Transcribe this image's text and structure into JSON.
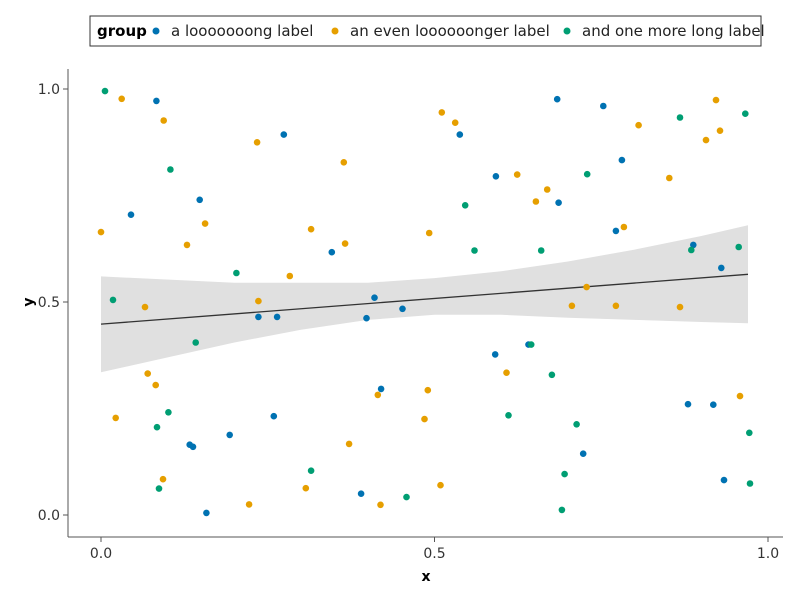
{
  "chart_data": {
    "type": "scatter",
    "legend": {
      "title": "group",
      "position": "top"
    },
    "xlabel": "x",
    "ylabel": "y",
    "xlim": [
      0.0,
      1.0
    ],
    "ylim": [
      0.0,
      1.0
    ],
    "x_ticks": [
      {
        "value": 0.0,
        "label": "0.0"
      },
      {
        "value": 0.5,
        "label": "0.5"
      },
      {
        "value": 1.0,
        "label": "1.0"
      }
    ],
    "y_ticks": [
      {
        "value": 0.0,
        "label": "0.0"
      },
      {
        "value": 0.5,
        "label": "0.5"
      },
      {
        "value": 1.0,
        "label": "1.0"
      }
    ],
    "grid": false,
    "series": [
      {
        "name": "a looooooong label",
        "color": "#0072b2",
        "points": [
          [
            0.045,
            0.705
          ],
          [
            0.083,
            0.972
          ],
          [
            0.133,
            0.165
          ],
          [
            0.138,
            0.16
          ],
          [
            0.148,
            0.74
          ],
          [
            0.158,
            0.005
          ],
          [
            0.193,
            0.188
          ],
          [
            0.236,
            0.465
          ],
          [
            0.259,
            0.232
          ],
          [
            0.264,
            0.465
          ],
          [
            0.274,
            0.893
          ],
          [
            0.346,
            0.617
          ],
          [
            0.39,
            0.05
          ],
          [
            0.398,
            0.462
          ],
          [
            0.41,
            0.51
          ],
          [
            0.42,
            0.296
          ],
          [
            0.452,
            0.484
          ],
          [
            0.538,
            0.893
          ],
          [
            0.591,
            0.377
          ],
          [
            0.592,
            0.795
          ],
          [
            0.641,
            0.4
          ],
          [
            0.684,
            0.976
          ],
          [
            0.686,
            0.733
          ],
          [
            0.723,
            0.144
          ],
          [
            0.753,
            0.96
          ],
          [
            0.772,
            0.667
          ],
          [
            0.781,
            0.833
          ],
          [
            0.88,
            0.26
          ],
          [
            0.888,
            0.634
          ],
          [
            0.918,
            0.259
          ],
          [
            0.93,
            0.58
          ],
          [
            0.934,
            0.082
          ]
        ]
      },
      {
        "name": "an even loooooonger label",
        "color": "#e69f00",
        "points": [
          [
            0.0,
            0.664
          ],
          [
            0.022,
            0.228
          ],
          [
            0.031,
            0.977
          ],
          [
            0.066,
            0.488
          ],
          [
            0.07,
            0.332
          ],
          [
            0.082,
            0.305
          ],
          [
            0.093,
            0.084
          ],
          [
            0.094,
            0.926
          ],
          [
            0.129,
            0.634
          ],
          [
            0.156,
            0.684
          ],
          [
            0.222,
            0.025
          ],
          [
            0.234,
            0.875
          ],
          [
            0.236,
            0.502
          ],
          [
            0.283,
            0.561
          ],
          [
            0.307,
            0.063
          ],
          [
            0.315,
            0.671
          ],
          [
            0.364,
            0.828
          ],
          [
            0.366,
            0.637
          ],
          [
            0.372,
            0.167
          ],
          [
            0.415,
            0.282
          ],
          [
            0.419,
            0.024
          ],
          [
            0.485,
            0.225
          ],
          [
            0.49,
            0.293
          ],
          [
            0.492,
            0.662
          ],
          [
            0.509,
            0.07
          ],
          [
            0.511,
            0.945
          ],
          [
            0.531,
            0.921
          ],
          [
            0.608,
            0.334
          ],
          [
            0.624,
            0.799
          ],
          [
            0.652,
            0.736
          ],
          [
            0.669,
            0.764
          ],
          [
            0.706,
            0.491
          ],
          [
            0.728,
            0.535
          ],
          [
            0.772,
            0.491
          ],
          [
            0.784,
            0.676
          ],
          [
            0.806,
            0.915
          ],
          [
            0.852,
            0.791
          ],
          [
            0.868,
            0.488
          ],
          [
            0.907,
            0.88
          ],
          [
            0.922,
            0.974
          ],
          [
            0.928,
            0.902
          ],
          [
            0.958,
            0.279
          ]
        ]
      },
      {
        "name": "and one more long label",
        "color": "#009e73",
        "points": [
          [
            0.006,
            0.995
          ],
          [
            0.018,
            0.505
          ],
          [
            0.084,
            0.206
          ],
          [
            0.087,
            0.062
          ],
          [
            0.101,
            0.241
          ],
          [
            0.104,
            0.811
          ],
          [
            0.142,
            0.405
          ],
          [
            0.203,
            0.568
          ],
          [
            0.315,
            0.104
          ],
          [
            0.458,
            0.042
          ],
          [
            0.546,
            0.727
          ],
          [
            0.56,
            0.621
          ],
          [
            0.611,
            0.234
          ],
          [
            0.645,
            0.4
          ],
          [
            0.66,
            0.621
          ],
          [
            0.676,
            0.329
          ],
          [
            0.691,
            0.012
          ],
          [
            0.695,
            0.096
          ],
          [
            0.713,
            0.213
          ],
          [
            0.729,
            0.8
          ],
          [
            0.868,
            0.933
          ],
          [
            0.885,
            0.622
          ],
          [
            0.956,
            0.629
          ],
          [
            0.966,
            0.942
          ],
          [
            0.972,
            0.193
          ],
          [
            0.973,
            0.074
          ]
        ]
      }
    ],
    "trend": {
      "type": "linear fit with confidence band",
      "x_range": [
        0.0,
        0.97
      ],
      "line_color": "#333333",
      "band_color": "#e0e0e0",
      "line": [
        [
          0.0,
          0.448
        ],
        [
          0.97,
          0.565
        ]
      ],
      "band_upper": [
        [
          0.0,
          0.56
        ],
        [
          0.2,
          0.545
        ],
        [
          0.4,
          0.545
        ],
        [
          0.5,
          0.556
        ],
        [
          0.6,
          0.572
        ],
        [
          0.7,
          0.595
        ],
        [
          0.8,
          0.623
        ],
        [
          0.9,
          0.655
        ],
        [
          0.97,
          0.68
        ]
      ],
      "band_lower": [
        [
          0.0,
          0.335
        ],
        [
          0.1,
          0.37
        ],
        [
          0.2,
          0.405
        ],
        [
          0.3,
          0.435
        ],
        [
          0.4,
          0.458
        ],
        [
          0.5,
          0.47
        ],
        [
          0.6,
          0.47
        ],
        [
          0.7,
          0.463
        ],
        [
          0.8,
          0.458
        ],
        [
          0.9,
          0.453
        ],
        [
          0.97,
          0.45
        ]
      ]
    }
  }
}
